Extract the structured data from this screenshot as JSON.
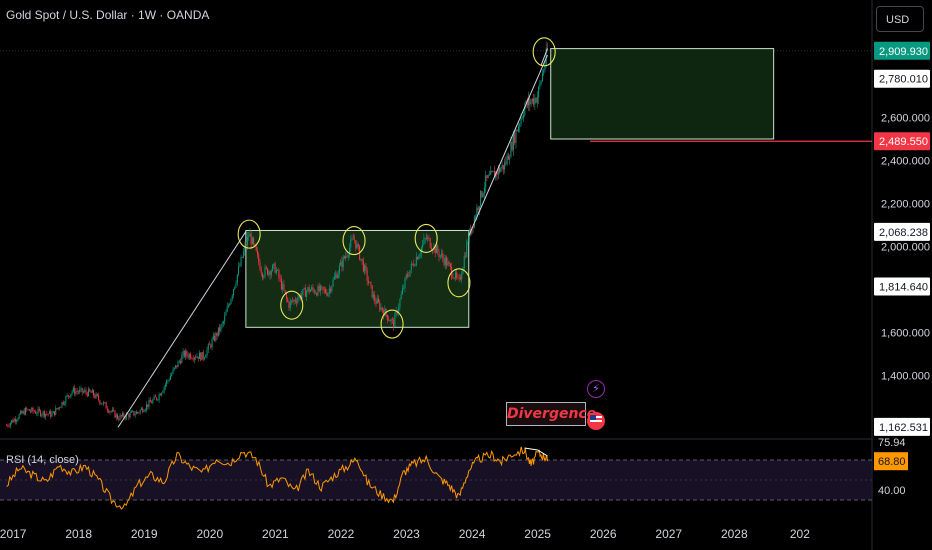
{
  "header": {
    "title": "Gold Spot / U.S. Dollar · 1W · OANDA",
    "currency_button": "USD"
  },
  "annotation": {
    "divergence_label": "Divergence"
  },
  "rsi_pane": {
    "label": "RSI (14, close)",
    "current_value": "68.80",
    "scale_labels": [
      "75.94",
      "40.00"
    ]
  },
  "price_axis": {
    "ticks": [
      "2,600.000",
      "2,400.000",
      "2,200.000",
      "2,000.000",
      "1,600.000",
      "1,400.000"
    ],
    "price_labels": [
      {
        "text": "2,909.930",
        "value": 2909.93,
        "style": "current",
        "color": "#089981"
      },
      {
        "text": "2,780.010",
        "value": 2780.01,
        "style": "boxed",
        "color": "#ffffff"
      },
      {
        "text": "2,489.550",
        "value": 2489.55,
        "style": "boxed",
        "color": "#f23645"
      },
      {
        "text": "2,068.238",
        "value": 2068.238,
        "style": "boxed",
        "color": "#ffffff"
      },
      {
        "text": "1,814.640",
        "value": 1814.64,
        "style": "boxed",
        "color": "#ffffff"
      },
      {
        "text": "1,162.531",
        "value": 1162.531,
        "style": "boxed",
        "color": "#ffffff"
      }
    ]
  },
  "time_axis": {
    "ticks": [
      "2017",
      "2018",
      "2019",
      "2020",
      "2021",
      "2022",
      "2023",
      "2024",
      "2025",
      "2026",
      "2027",
      "2028",
      "202"
    ]
  },
  "colors": {
    "background": "#000000",
    "up_candle": "#089981",
    "down_candle": "#f23645",
    "box_fill": "#1b3a1b",
    "box_border": "#c8e6c9",
    "circle": "#e8e85a",
    "trend_line": "#d1d4dc",
    "rsi_line": "#ff9800",
    "rsi_band": "#1e1530"
  },
  "chart_data": {
    "type": "candlestick",
    "symbol": "Gold Spot / U.S. Dollar",
    "interval": "1W",
    "source": "OANDA",
    "price_range": [
      1120,
      2960
    ],
    "time_range": [
      2016.8,
      2030.1
    ],
    "close_path": [
      [
        2016.9,
        1170
      ],
      [
        2017.2,
        1240
      ],
      [
        2017.6,
        1220
      ],
      [
        2017.9,
        1330
      ],
      [
        2018.2,
        1320
      ],
      [
        2018.6,
        1205
      ],
      [
        2018.9,
        1230
      ],
      [
        2019.2,
        1300
      ],
      [
        2019.6,
        1500
      ],
      [
        2019.9,
        1490
      ],
      [
        2020.2,
        1640
      ],
      [
        2020.6,
        2060
      ],
      [
        2020.8,
        1880
      ],
      [
        2021.0,
        1900
      ],
      [
        2021.2,
        1730
      ],
      [
        2021.5,
        1800
      ],
      [
        2021.8,
        1790
      ],
      [
        2022.2,
        2040
      ],
      [
        2022.5,
        1760
      ],
      [
        2022.8,
        1640
      ],
      [
        2023.0,
        1860
      ],
      [
        2023.3,
        2040
      ],
      [
        2023.6,
        1930
      ],
      [
        2023.8,
        1830
      ],
      [
        2023.95,
        2050
      ],
      [
        2024.2,
        2300
      ],
      [
        2024.5,
        2380
      ],
      [
        2024.8,
        2650
      ],
      [
        2025.0,
        2700
      ],
      [
        2025.15,
        2910
      ]
    ],
    "consolidation_box": {
      "x0": 2020.55,
      "x1": 2023.95,
      "y0": 1625,
      "y1": 2075
    },
    "target_box": {
      "x0": 2025.2,
      "x1": 2028.6,
      "y0": 2500,
      "y1": 2920
    },
    "support_line": {
      "price": 2489.55,
      "x0": 2025.8,
      "x1": 2030.1
    },
    "trend_lines": [
      {
        "from": [
          2018.6,
          1160
        ],
        "to": [
          2020.55,
          2070
        ]
      },
      {
        "from": [
          2023.95,
          2050
        ],
        "to": [
          2025.15,
          2890
        ]
      },
      {
        "from": [
          2025.05,
          2840
        ],
        "to": [
          2025.15,
          2920
        ]
      }
    ],
    "circled_points": [
      {
        "t": 2020.6,
        "p": 2058
      },
      {
        "t": 2021.25,
        "p": 1728
      },
      {
        "t": 2022.2,
        "p": 2028
      },
      {
        "t": 2022.78,
        "p": 1640
      },
      {
        "t": 2023.3,
        "p": 2038
      },
      {
        "t": 2023.8,
        "p": 1832
      },
      {
        "t": 2025.1,
        "p": 2905
      }
    ],
    "rsi": {
      "period": 14,
      "range": [
        20,
        90
      ],
      "levels": [
        70,
        30
      ],
      "last": 68.8,
      "points": [
        [
          2016.9,
          45
        ],
        [
          2017.1,
          62
        ],
        [
          2017.3,
          55
        ],
        [
          2017.5,
          48
        ],
        [
          2017.7,
          65
        ],
        [
          2017.9,
          57
        ],
        [
          2018.1,
          64
        ],
        [
          2018.3,
          50
        ],
        [
          2018.5,
          30
        ],
        [
          2018.7,
          22
        ],
        [
          2018.9,
          45
        ],
        [
          2019.1,
          55
        ],
        [
          2019.3,
          48
        ],
        [
          2019.5,
          75
        ],
        [
          2019.7,
          63
        ],
        [
          2019.9,
          57
        ],
        [
          2020.1,
          72
        ],
        [
          2020.3,
          67
        ],
        [
          2020.5,
          79
        ],
        [
          2020.7,
          72
        ],
        [
          2020.9,
          44
        ],
        [
          2021.1,
          52
        ],
        [
          2021.3,
          38
        ],
        [
          2021.5,
          59
        ],
        [
          2021.7,
          43
        ],
        [
          2021.9,
          55
        ],
        [
          2022.1,
          64
        ],
        [
          2022.25,
          72
        ],
        [
          2022.4,
          48
        ],
        [
          2022.6,
          36
        ],
        [
          2022.8,
          29
        ],
        [
          2022.95,
          57
        ],
        [
          2023.1,
          66
        ],
        [
          2023.3,
          71
        ],
        [
          2023.5,
          52
        ],
        [
          2023.65,
          45
        ],
        [
          2023.8,
          33
        ],
        [
          2023.95,
          60
        ],
        [
          2024.1,
          71
        ],
        [
          2024.3,
          75
        ],
        [
          2024.45,
          68
        ],
        [
          2024.6,
          76
        ],
        [
          2024.8,
          80
        ],
        [
          2024.9,
          65
        ],
        [
          2025.0,
          77
        ],
        [
          2025.1,
          74
        ],
        [
          2025.15,
          68.8
        ]
      ],
      "divergence_line": [
        [
          2024.8,
          82
        ],
        [
          2025.0,
          80
        ],
        [
          2025.15,
          74
        ]
      ]
    }
  }
}
